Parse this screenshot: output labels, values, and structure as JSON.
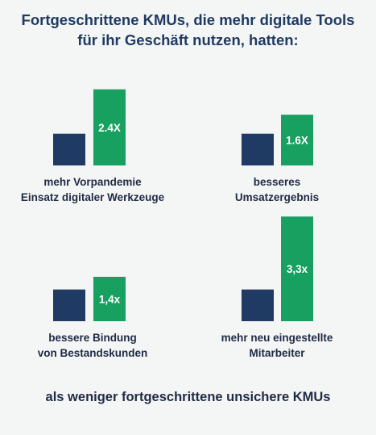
{
  "title": {
    "line1": "Fortgeschrittene KMUs, die mehr digitale Tools",
    "line2": "für ihr Geschäft nutzen, hatten:"
  },
  "footer": "als weniger fortgeschrittene unsichere KMUs",
  "colors": {
    "baseline": "#1f3a63",
    "advanced": "#17a060",
    "value_text": "#ffffff"
  },
  "chart_data": [
    {
      "type": "bar",
      "categories": [
        "",
        ""
      ],
      "values": [
        1.0,
        2.4
      ],
      "value_label": "2.4X",
      "label": [
        "mehr Vorpandemie",
        "Einsatz digitaler Werkzeuge"
      ]
    },
    {
      "type": "bar",
      "categories": [
        "",
        ""
      ],
      "values": [
        1.0,
        1.6
      ],
      "value_label": "1.6X",
      "label": [
        "besseres",
        "Umsatzergebnis"
      ]
    },
    {
      "type": "bar",
      "categories": [
        "",
        ""
      ],
      "values": [
        1.0,
        1.4
      ],
      "value_label": "1,4x",
      "label": [
        "bessere Bindung",
        "von Bestandskunden"
      ]
    },
    {
      "type": "bar",
      "categories": [
        "",
        ""
      ],
      "values": [
        1.0,
        3.3
      ],
      "value_label": "3,3x",
      "label": [
        "mehr neu eingestellte",
        "Mitarbeiter"
      ]
    }
  ]
}
